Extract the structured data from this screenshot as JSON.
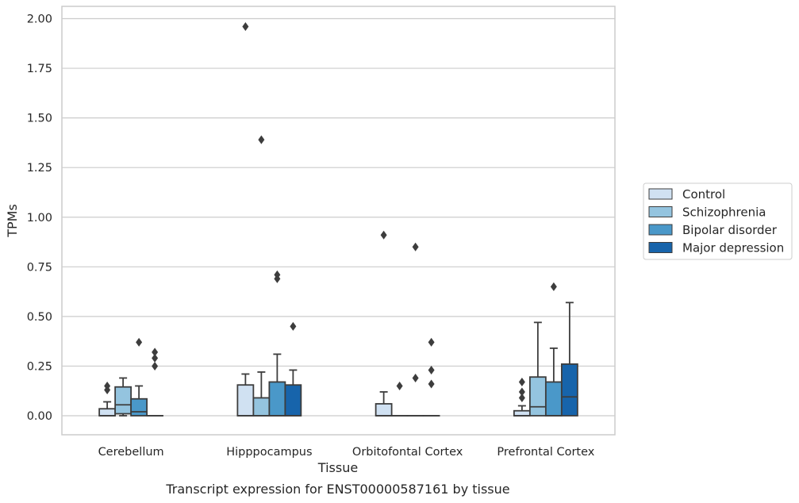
{
  "chart_data": {
    "type": "box",
    "title": "Transcript expression for ENST00000587161 by tissue",
    "xlabel": "Tissue",
    "ylabel": "TPMs",
    "ylim": [
      -0.09,
      2.06
    ],
    "yticks": [
      "0.00",
      "0.25",
      "0.50",
      "0.75",
      "1.00",
      "1.25",
      "1.50",
      "1.75",
      "2.00"
    ],
    "grid": true,
    "legend_position": "right",
    "categories": [
      "Cerebellum",
      "Hipppocampus",
      "Orbitofontal Cortex",
      "Prefrontal Cortex"
    ],
    "series": [
      {
        "name": "Control",
        "color": "#d0e1f2",
        "boxes": [
          {
            "q1": 0.0,
            "median": 0.0,
            "q3": 0.035,
            "whislo": 0.0,
            "whishi": 0.07,
            "fliers": [
              0.13,
              0.15
            ]
          },
          {
            "q1": 0.0,
            "median": 0.0,
            "q3": 0.155,
            "whislo": 0.0,
            "whishi": 0.21,
            "fliers": [
              1.96
            ]
          },
          {
            "q1": 0.0,
            "median": 0.0,
            "q3": 0.06,
            "whislo": 0.0,
            "whishi": 0.12,
            "fliers": [
              0.91
            ]
          },
          {
            "q1": 0.0,
            "median": 0.0,
            "q3": 0.025,
            "whislo": 0.0,
            "whishi": 0.05,
            "fliers": [
              0.09,
              0.12,
              0.17
            ]
          }
        ]
      },
      {
        "name": "Schizophrenia",
        "color": "#94c4df",
        "boxes": [
          {
            "q1": 0.01,
            "median": 0.055,
            "q3": 0.145,
            "whislo": 0.0,
            "whishi": 0.19,
            "fliers": []
          },
          {
            "q1": 0.0,
            "median": 0.0,
            "q3": 0.09,
            "whislo": 0.0,
            "whishi": 0.22,
            "fliers": [
              1.39
            ]
          },
          {
            "q1": 0.0,
            "median": 0.0,
            "q3": 0.0,
            "whislo": 0.0,
            "whishi": 0.0,
            "fliers": [
              0.15
            ]
          },
          {
            "q1": 0.0,
            "median": 0.045,
            "q3": 0.195,
            "whislo": 0.0,
            "whishi": 0.47,
            "fliers": []
          }
        ]
      },
      {
        "name": "Bipolar disorder",
        "color": "#4a98c9",
        "boxes": [
          {
            "q1": 0.0,
            "median": 0.02,
            "q3": 0.085,
            "whislo": 0.0,
            "whishi": 0.15,
            "fliers": [
              0.37
            ]
          },
          {
            "q1": 0.0,
            "median": 0.0,
            "q3": 0.17,
            "whislo": 0.0,
            "whishi": 0.31,
            "fliers": [
              0.69,
              0.71
            ]
          },
          {
            "q1": 0.0,
            "median": 0.0,
            "q3": 0.0,
            "whislo": 0.0,
            "whishi": 0.0,
            "fliers": [
              0.19,
              0.85
            ]
          },
          {
            "q1": 0.0,
            "median": 0.0,
            "q3": 0.17,
            "whislo": 0.0,
            "whishi": 0.34,
            "fliers": [
              0.65
            ]
          }
        ]
      },
      {
        "name": "Major depression",
        "color": "#1764ab",
        "boxes": [
          {
            "q1": 0.0,
            "median": 0.0,
            "q3": 0.0,
            "whislo": 0.0,
            "whishi": 0.0,
            "fliers": [
              0.25,
              0.29,
              0.32
            ]
          },
          {
            "q1": 0.0,
            "median": 0.0,
            "q3": 0.155,
            "whislo": 0.0,
            "whishi": 0.23,
            "fliers": [
              0.45
            ]
          },
          {
            "q1": 0.0,
            "median": 0.0,
            "q3": 0.0,
            "whislo": 0.0,
            "whishi": 0.0,
            "fliers": [
              0.16,
              0.23,
              0.37
            ]
          },
          {
            "q1": 0.0,
            "median": 0.095,
            "q3": 0.26,
            "whislo": 0.0,
            "whishi": 0.57,
            "fliers": []
          }
        ]
      }
    ]
  }
}
